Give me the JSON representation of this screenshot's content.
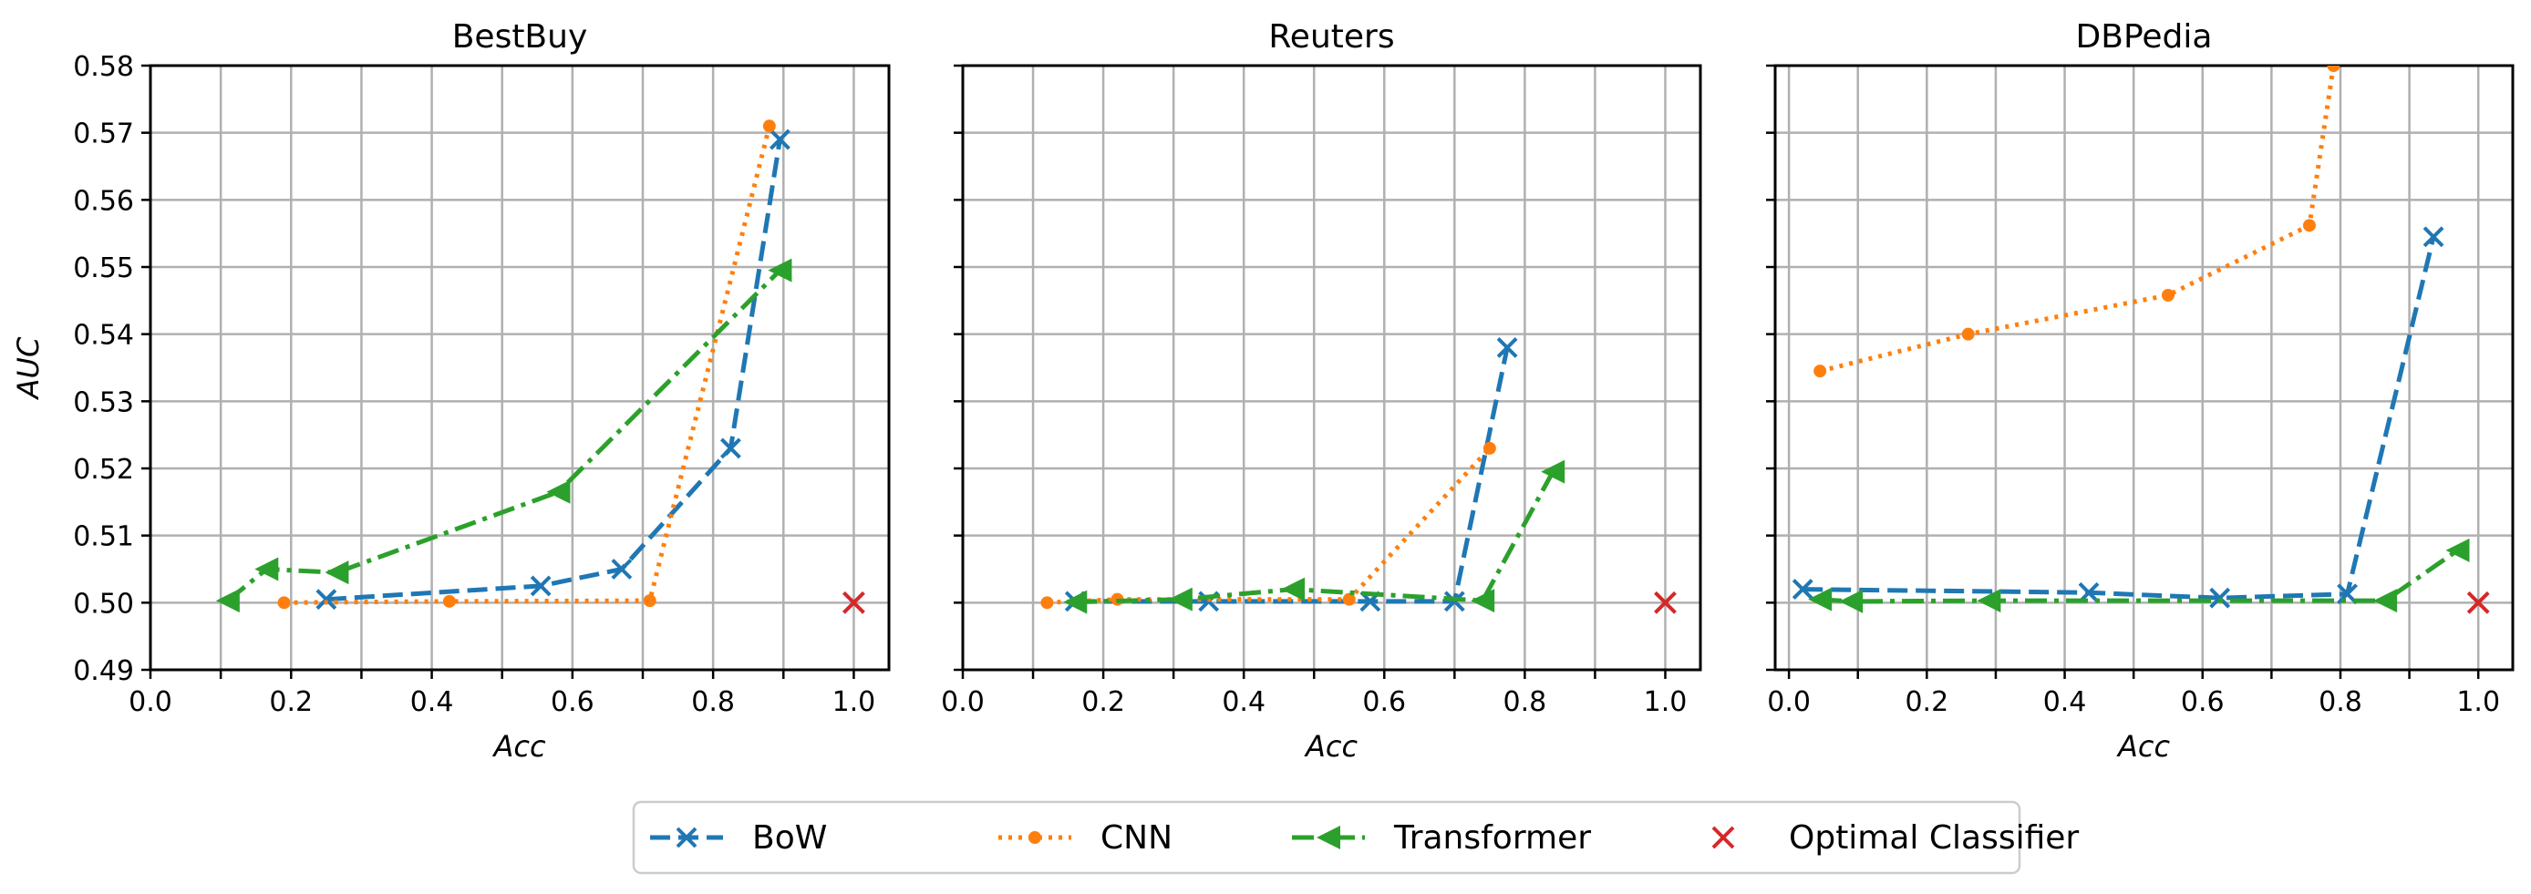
{
  "chart_data": [
    {
      "type": "line",
      "title": "BestBuy",
      "xlabel": "Acc",
      "ylabel": "AUC",
      "xlim": [
        0.0,
        1.05
      ],
      "ylim": [
        0.49,
        0.58
      ],
      "xticks": [
        "0.0",
        "0.2",
        "0.4",
        "0.6",
        "0.8",
        "1.0"
      ],
      "yticks": [
        "0.49",
        "0.50",
        "0.51",
        "0.52",
        "0.53",
        "0.54",
        "0.55",
        "0.56",
        "0.57",
        "0.58"
      ],
      "grid": true,
      "series": [
        {
          "name": "BoW",
          "x": [
            0.25,
            0.555,
            0.67,
            0.825,
            0.895
          ],
          "y": [
            0.5005,
            0.5025,
            0.505,
            0.523,
            0.569
          ]
        },
        {
          "name": "CNN",
          "x": [
            0.19,
            0.425,
            0.71,
            0.88
          ],
          "y": [
            0.5,
            0.5002,
            0.5003,
            0.571
          ]
        },
        {
          "name": "Transformer",
          "x": [
            0.11,
            0.165,
            0.265,
            0.58,
            0.895
          ],
          "y": [
            0.5003,
            0.505,
            0.5045,
            0.5165,
            0.5495
          ]
        }
      ],
      "optimal": {
        "x": 1.0,
        "y": 0.5
      }
    },
    {
      "type": "line",
      "title": "Reuters",
      "xlabel": "Acc",
      "ylabel": "",
      "xlim": [
        0.0,
        1.05
      ],
      "ylim": [
        0.49,
        0.58
      ],
      "xticks": [
        "0.0",
        "0.2",
        "0.4",
        "0.6",
        "0.8",
        "1.0"
      ],
      "yticks": [],
      "grid": true,
      "series": [
        {
          "name": "BoW",
          "x": [
            0.16,
            0.35,
            0.58,
            0.7,
            0.775
          ],
          "y": [
            0.5002,
            0.5002,
            0.5002,
            0.5002,
            0.538
          ]
        },
        {
          "name": "CNN",
          "x": [
            0.12,
            0.22,
            0.55,
            0.75
          ],
          "y": [
            0.5,
            0.5005,
            0.5005,
            0.523
          ]
        },
        {
          "name": "Transformer",
          "x": [
            0.16,
            0.31,
            0.47,
            0.74,
            0.84
          ],
          "y": [
            0.5001,
            0.5005,
            0.502,
            0.5003,
            0.5195
          ]
        }
      ],
      "optimal": {
        "x": 1.0,
        "y": 0.5
      }
    },
    {
      "type": "line",
      "title": "DBPedia",
      "xlabel": "Acc",
      "ylabel": "",
      "xlim": [
        -0.02,
        1.05
      ],
      "ylim": [
        0.49,
        0.58
      ],
      "xticks": [
        "0.0",
        "0.2",
        "0.4",
        "0.6",
        "0.8",
        "1.0"
      ],
      "yticks": [],
      "grid": true,
      "series": [
        {
          "name": "BoW",
          "x": [
            0.02,
            0.435,
            0.625,
            0.81,
            0.935
          ],
          "y": [
            0.502,
            0.5015,
            0.5007,
            0.5013,
            0.5545
          ]
        },
        {
          "name": "CNN",
          "x": [
            0.045,
            0.26,
            0.55,
            0.755,
            0.79
          ],
          "y": [
            0.5345,
            0.54,
            0.5458,
            0.5562,
            0.58
          ]
        },
        {
          "name": "Transformer",
          "x": [
            0.045,
            0.09,
            0.29,
            0.865,
            0.97
          ],
          "y": [
            0.5005,
            0.5002,
            0.5003,
            0.5003,
            0.5078
          ]
        }
      ],
      "optimal": {
        "x": 1.0,
        "y": 0.5
      }
    }
  ],
  "legend": {
    "placement": "bottom-center",
    "items": [
      "BoW",
      "CNN",
      "Transformer",
      "Optimal Classifier"
    ]
  },
  "colors": {
    "BoW": "#1f77b4",
    "CNN": "#ff7f0e",
    "Transformer": "#2ca02c",
    "Optimal Classifier": "#d62728",
    "grid": "#b0b0b0"
  }
}
